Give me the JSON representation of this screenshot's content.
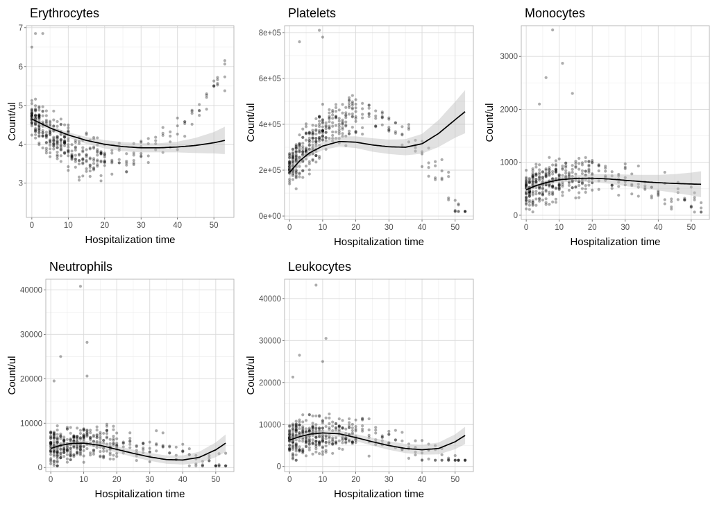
{
  "chart_data": [
    {
      "type": "scatter",
      "title": "Erythrocytes",
      "xlabel": "Hospitalization time",
      "ylabel": "Count/ul",
      "xlim": [
        -1.5,
        55.5
      ],
      "ylim": [
        2.12,
        7.05
      ],
      "xticks": [
        0,
        10,
        20,
        30,
        40,
        50
      ],
      "xtick_labels": [
        "0",
        "10",
        "20",
        "30",
        "40",
        "50"
      ],
      "yticks": [
        3,
        4,
        5,
        6,
        7
      ],
      "ytick_labels": [
        "3",
        "4",
        "5",
        "6",
        "7"
      ],
      "grid": true,
      "legend": "none",
      "points": {
        "center": [
          4.7,
          -0.1,
          0.0023
        ],
        "spread": 0.75,
        "min": 2.3,
        "max": 6.9,
        "outliers": [
          [
            1,
            6.85
          ],
          [
            3,
            6.85
          ],
          [
            0,
            6.5
          ]
        ]
      },
      "smooth": {
        "x": [
          0,
          5,
          10,
          15,
          20,
          25,
          30,
          35,
          40,
          45,
          50,
          53
        ],
        "y": [
          4.65,
          4.42,
          4.24,
          4.1,
          4.0,
          3.94,
          3.91,
          3.91,
          3.93,
          3.97,
          4.04,
          4.1
        ],
        "se": [
          0.04,
          0.03,
          0.035,
          0.045,
          0.055,
          0.06,
          0.06,
          0.06,
          0.07,
          0.1,
          0.14,
          0.18
        ]
      }
    },
    {
      "type": "scatter",
      "title": "Platelets",
      "xlabel": "Hospitalization time",
      "ylabel": "Count/ul",
      "xlim": [
        -1.5,
        55.5
      ],
      "ylim": [
        -15000,
        830000
      ],
      "xticks": [
        0,
        10,
        20,
        30,
        40,
        50
      ],
      "xtick_labels": [
        "0",
        "10",
        "20",
        "30",
        "40",
        "50"
      ],
      "yticks": [
        0,
        200000,
        400000,
        600000,
        800000
      ],
      "ytick_labels": [
        "0e+00",
        "2e+05",
        "4e+05",
        "6e+05",
        "8e+05"
      ],
      "grid": true,
      "legend": "none",
      "points": {
        "center": [
          195000,
          22000,
          -500
        ],
        "spread": 140000,
        "min": 20000,
        "max": 810000,
        "outliers": [
          [
            9,
            810000
          ],
          [
            10,
            780000
          ],
          [
            3,
            760000
          ]
        ]
      },
      "smooth": {
        "x": [
          0,
          3,
          6,
          10,
          15,
          20,
          25,
          30,
          35,
          40,
          45,
          50,
          53
        ],
        "y": [
          190000,
          240000,
          275000,
          305000,
          325000,
          322000,
          310000,
          302000,
          300000,
          315000,
          360000,
          420000,
          455000
        ],
        "se": [
          15000,
          9000,
          8000,
          9000,
          11000,
          13000,
          15000,
          16000,
          18000,
          22000,
          30000,
          40000,
          48000
        ]
      }
    },
    {
      "type": "scatter",
      "title": "Monocytes",
      "xlabel": "Hospitalization time",
      "ylabel": "Count/ul",
      "xlim": [
        -1.5,
        55.5
      ],
      "ylim": [
        -80,
        3580
      ],
      "xticks": [
        0,
        10,
        20,
        30,
        40,
        50
      ],
      "xtick_labels": [
        "0",
        "10",
        "20",
        "30",
        "40",
        "50"
      ],
      "yticks": [
        0,
        1000,
        2000,
        3000
      ],
      "ytick_labels": [
        "0",
        "1000",
        "2000",
        "3000"
      ],
      "grid": true,
      "legend": "none",
      "points": {
        "center": [
          480,
          25,
          -0.6
        ],
        "spread": 550,
        "min": 60,
        "max": 2100,
        "outliers": [
          [
            8,
            3500
          ],
          [
            11,
            2870
          ],
          [
            6,
            2600
          ],
          [
            14,
            2300
          ],
          [
            4,
            2100
          ]
        ]
      },
      "smooth": {
        "x": [
          0,
          3,
          6,
          10,
          15,
          20,
          25,
          30,
          35,
          40,
          45,
          50,
          53
        ],
        "y": [
          480,
          560,
          615,
          670,
          695,
          700,
          685,
          660,
          635,
          615,
          600,
          590,
          585
        ],
        "se": [
          30,
          22,
          22,
          25,
          30,
          38,
          45,
          55,
          65,
          75,
          90,
          110,
          125
        ]
      }
    },
    {
      "type": "scatter",
      "title": "Neutrophils",
      "xlabel": "Hospitalization time",
      "ylabel": "Count/ul",
      "xlim": [
        -1.5,
        55.5
      ],
      "ylim": [
        -900,
        42400
      ],
      "xticks": [
        0,
        10,
        20,
        30,
        40,
        50
      ],
      "xtick_labels": [
        "0",
        "10",
        "20",
        "30",
        "40",
        "50"
      ],
      "yticks": [
        0,
        10000,
        20000,
        30000,
        40000
      ],
      "ytick_labels": [
        "0",
        "10000",
        "20000",
        "30000",
        "40000"
      ],
      "grid": true,
      "legend": "none",
      "points": {
        "center": [
          4500,
          120,
          -4
        ],
        "spread": 6000,
        "min": 400,
        "max": 20000,
        "outliers": [
          [
            9,
            40800
          ],
          [
            11,
            28200
          ],
          [
            3,
            25000
          ],
          [
            1,
            19500
          ],
          [
            11,
            20600
          ]
        ]
      },
      "smooth": {
        "x": [
          0,
          3,
          6,
          10,
          15,
          20,
          25,
          30,
          35,
          40,
          45,
          50,
          53
        ],
        "y": [
          4300,
          5000,
          5400,
          5500,
          5000,
          4100,
          3200,
          2400,
          1800,
          1700,
          2300,
          4000,
          5500
        ],
        "se": [
          350,
          250,
          250,
          280,
          320,
          380,
          420,
          450,
          480,
          520,
          650,
          850,
          1000
        ]
      }
    },
    {
      "type": "scatter",
      "title": "Leukocytes",
      "xlabel": "Hospitalization time",
      "ylabel": "Count/ul",
      "xlim": [
        -1.5,
        55.5
      ],
      "ylim": [
        -1200,
        44600
      ],
      "xticks": [
        0,
        10,
        20,
        30,
        40,
        50
      ],
      "xtick_labels": [
        "0",
        "10",
        "20",
        "30",
        "40",
        "50"
      ],
      "yticks": [
        0,
        10000,
        20000,
        30000,
        40000
      ],
      "ytick_labels": [
        "0",
        "10000",
        "20000",
        "30000",
        "40000"
      ],
      "grid": true,
      "legend": "none",
      "points": {
        "center": [
          6500,
          170,
          -6
        ],
        "spread": 6500,
        "min": 1500,
        "max": 21500,
        "outliers": [
          [
            8,
            43200
          ],
          [
            11,
            30500
          ],
          [
            3,
            26500
          ],
          [
            10,
            25000
          ],
          [
            1,
            21300
          ]
        ]
      },
      "smooth": {
        "x": [
          0,
          3,
          6,
          10,
          15,
          20,
          25,
          30,
          35,
          40,
          45,
          50,
          53
        ],
        "y": [
          6300,
          7100,
          7700,
          8000,
          7800,
          6900,
          5900,
          5000,
          4300,
          4000,
          4300,
          5900,
          7400
        ],
        "se": [
          400,
          300,
          300,
          330,
          380,
          430,
          480,
          520,
          560,
          600,
          720,
          900,
          1050
        ]
      }
    }
  ]
}
